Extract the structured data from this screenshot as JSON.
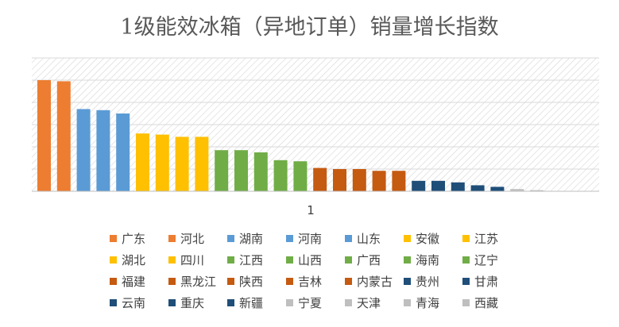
{
  "chart_data": {
    "type": "bar",
    "title": "1级能效冰箱（异地订单）销量增长指数",
    "categories": [
      "1"
    ],
    "yaxis_labels_shown": false,
    "gridlines": true,
    "legend_position": "bottom",
    "ylim": [
      0,
      6
    ],
    "series": [
      {
        "name": "广东",
        "value": 5.0,
        "color": "#ED7D31"
      },
      {
        "name": "河北",
        "value": 4.95,
        "color": "#ED7D31"
      },
      {
        "name": "湖南",
        "value": 3.7,
        "color": "#5B9BD5"
      },
      {
        "name": "河南",
        "value": 3.65,
        "color": "#5B9BD5"
      },
      {
        "name": "山东",
        "value": 3.5,
        "color": "#5B9BD5"
      },
      {
        "name": "安徽",
        "value": 2.6,
        "color": "#FFC000"
      },
      {
        "name": "江苏",
        "value": 2.55,
        "color": "#FFC000"
      },
      {
        "name": "湖北",
        "value": 2.45,
        "color": "#FFC000"
      },
      {
        "name": "四川",
        "value": 2.45,
        "color": "#FFC000"
      },
      {
        "name": "江西",
        "value": 1.85,
        "color": "#70AD47"
      },
      {
        "name": "山西",
        "value": 1.85,
        "color": "#70AD47"
      },
      {
        "name": "广西",
        "value": 1.75,
        "color": "#70AD47"
      },
      {
        "name": "海南",
        "value": 1.4,
        "color": "#70AD47"
      },
      {
        "name": "辽宁",
        "value": 1.35,
        "color": "#70AD47"
      },
      {
        "name": "福建",
        "value": 1.05,
        "color": "#C55A11"
      },
      {
        "name": "黑龙江",
        "value": 1.0,
        "color": "#C55A11"
      },
      {
        "name": "陕西",
        "value": 1.0,
        "color": "#C55A11"
      },
      {
        "name": "吉林",
        "value": 0.92,
        "color": "#C55A11"
      },
      {
        "name": "内蒙古",
        "value": 0.92,
        "color": "#C55A11"
      },
      {
        "name": "贵州",
        "value": 0.47,
        "color": "#1F4E79"
      },
      {
        "name": "甘肃",
        "value": 0.47,
        "color": "#1F4E79"
      },
      {
        "name": "云南",
        "value": 0.4,
        "color": "#1F4E79"
      },
      {
        "name": "重庆",
        "value": 0.27,
        "color": "#1F4E79"
      },
      {
        "name": "新疆",
        "value": 0.2,
        "color": "#1F4E79"
      },
      {
        "name": "宁夏",
        "value": 0.1,
        "color": "#BFBFBF"
      },
      {
        "name": "天津",
        "value": 0.05,
        "color": "#BFBFBF"
      },
      {
        "name": "青海",
        "value": 0.0,
        "color": "#BFBFBF"
      },
      {
        "name": "西藏",
        "value": 0.0,
        "color": "#BFBFBF"
      }
    ]
  }
}
